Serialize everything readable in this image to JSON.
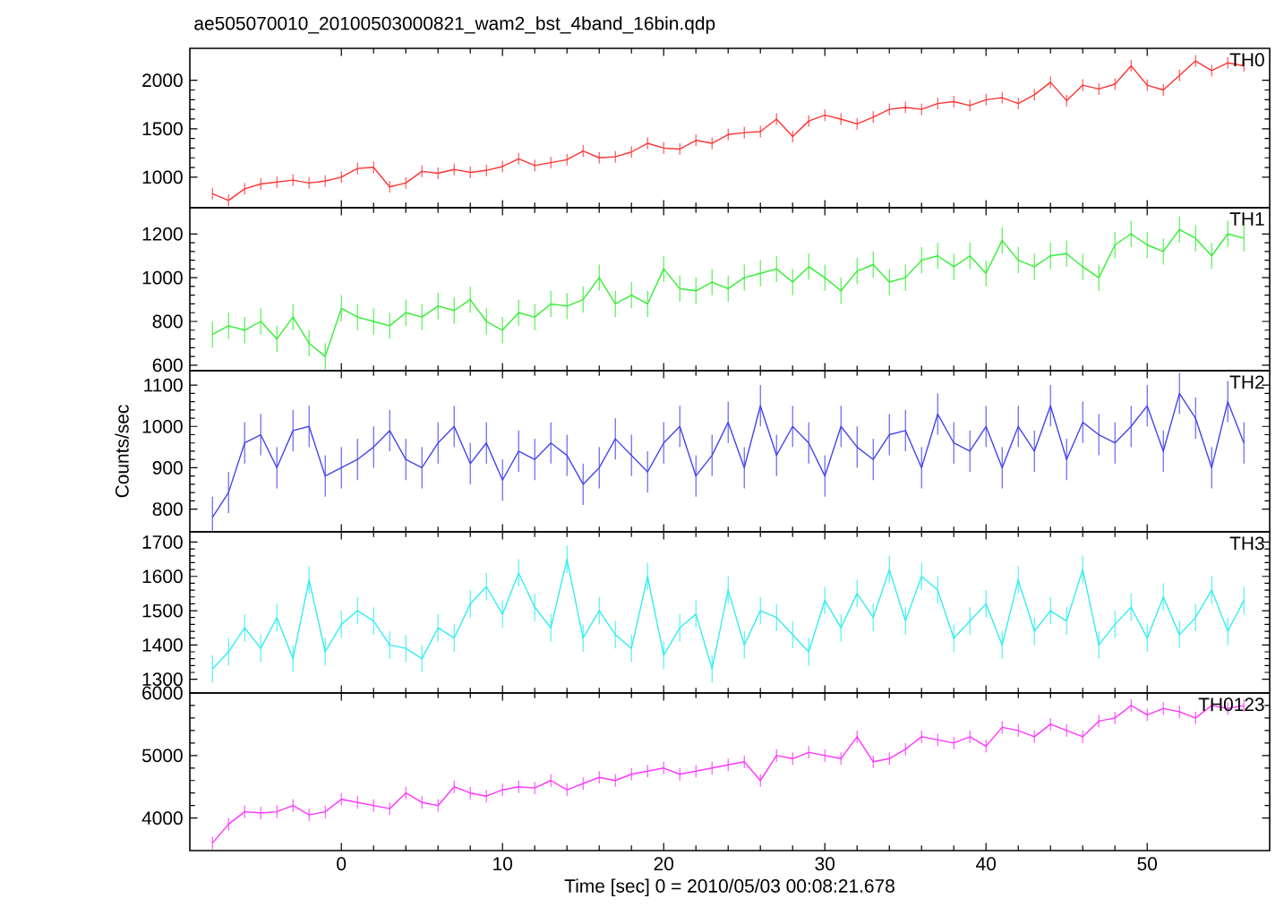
{
  "chart_data": [
    {
      "type": "line",
      "title": "ae505070010_20100503000821_wam2_bst_4band_16bin.qdp",
      "annotations": [
        "TH0"
      ],
      "xlim": [
        -9.4,
        57.6
      ],
      "xticks": [
        0,
        10,
        20,
        30,
        40,
        50
      ],
      "ylim": [
        685,
        2330
      ],
      "yticks": [
        1000,
        1500,
        2000
      ],
      "tick_labels": "y",
      "marker": "none",
      "x": [
        -8,
        -7,
        -6,
        -5,
        -4,
        -3,
        -2,
        -1,
        0,
        1,
        2,
        3,
        4,
        5,
        6,
        7,
        8,
        9,
        10,
        11,
        12,
        13,
        14,
        15,
        16,
        17,
        18,
        19,
        20,
        21,
        22,
        23,
        24,
        25,
        26,
        27,
        28,
        29,
        30,
        31,
        32,
        33,
        34,
        35,
        36,
        37,
        38,
        39,
        40,
        41,
        42,
        43,
        44,
        45,
        46,
        47,
        48,
        49,
        50,
        51,
        52,
        53,
        54,
        55,
        56
      ],
      "series": [
        {
          "color": "#ff3333",
          "values": [
            830,
            760,
            880,
            930,
            950,
            970,
            940,
            960,
            1000,
            1090,
            1100,
            900,
            940,
            1060,
            1040,
            1080,
            1050,
            1070,
            1110,
            1190,
            1120,
            1150,
            1180,
            1270,
            1200,
            1210,
            1260,
            1350,
            1300,
            1290,
            1380,
            1350,
            1440,
            1460,
            1470,
            1600,
            1420,
            1580,
            1640,
            1600,
            1550,
            1620,
            1700,
            1720,
            1700,
            1760,
            1780,
            1740,
            1800,
            1820,
            1760,
            1850,
            1980,
            1790,
            1950,
            1910,
            1960,
            2150,
            1950,
            1900,
            2050,
            2200,
            2100,
            2180,
            2150
          ],
          "errors": [
            60,
            60,
            60,
            60,
            60,
            60,
            60,
            60,
            60,
            60,
            60,
            60,
            60,
            60,
            60,
            60,
            60,
            60,
            60,
            60,
            60,
            60,
            60,
            60,
            60,
            60,
            60,
            60,
            60,
            60,
            60,
            60,
            60,
            60,
            60,
            60,
            60,
            60,
            60,
            60,
            60,
            60,
            60,
            60,
            60,
            60,
            60,
            60,
            60,
            60,
            60,
            60,
            60,
            60,
            60,
            60,
            60,
            60,
            60,
            60,
            60,
            60,
            60,
            60,
            60
          ]
        }
      ]
    },
    {
      "type": "line",
      "annotations": [
        "TH1"
      ],
      "xlim": [
        -9.4,
        57.6
      ],
      "xticks": [
        0,
        10,
        20,
        30,
        40,
        50
      ],
      "ylim": [
        575,
        1320
      ],
      "yticks": [
        600,
        800,
        1000,
        1200
      ],
      "tick_labels": "y",
      "marker": "none",
      "x": [
        -8,
        -7,
        -6,
        -5,
        -4,
        -3,
        -2,
        -1,
        0,
        1,
        2,
        3,
        4,
        5,
        6,
        7,
        8,
        9,
        10,
        11,
        12,
        13,
        14,
        15,
        16,
        17,
        18,
        19,
        20,
        21,
        22,
        23,
        24,
        25,
        26,
        27,
        28,
        29,
        30,
        31,
        32,
        33,
        34,
        35,
        36,
        37,
        38,
        39,
        40,
        41,
        42,
        43,
        44,
        45,
        46,
        47,
        48,
        49,
        50,
        51,
        52,
        53,
        54,
        55,
        56
      ],
      "series": [
        {
          "color": "#33ee33",
          "values": [
            740,
            780,
            760,
            800,
            720,
            820,
            700,
            640,
            860,
            820,
            800,
            780,
            840,
            820,
            870,
            850,
            900,
            800,
            760,
            840,
            820,
            880,
            870,
            900,
            1000,
            880,
            920,
            880,
            1040,
            950,
            940,
            980,
            950,
            1000,
            1020,
            1040,
            980,
            1050,
            1000,
            940,
            1030,
            1060,
            980,
            1000,
            1080,
            1100,
            1050,
            1100,
            1020,
            1170,
            1080,
            1050,
            1100,
            1110,
            1050,
            1000,
            1150,
            1200,
            1150,
            1120,
            1220,
            1180,
            1100,
            1200,
            1180
          ],
          "errors": [
            60,
            60,
            60,
            60,
            60,
            60,
            60,
            60,
            60,
            60,
            60,
            60,
            60,
            60,
            60,
            60,
            60,
            60,
            60,
            60,
            60,
            60,
            60,
            60,
            60,
            60,
            60,
            60,
            60,
            60,
            60,
            60,
            60,
            60,
            60,
            60,
            60,
            60,
            60,
            60,
            60,
            60,
            60,
            60,
            60,
            60,
            60,
            60,
            60,
            60,
            60,
            60,
            60,
            60,
            60,
            60,
            60,
            60,
            60,
            60,
            60,
            60,
            60,
            60,
            60
          ]
        }
      ]
    },
    {
      "type": "line",
      "ylabel": "Counts/sec",
      "annotations": [
        "TH2"
      ],
      "xlim": [
        -9.4,
        57.6
      ],
      "xticks": [
        0,
        10,
        20,
        30,
        40,
        50
      ],
      "ylim": [
        745,
        1135
      ],
      "yticks": [
        800,
        900,
        1000,
        1100
      ],
      "tick_labels": "y",
      "marker": "none",
      "x": [
        -8,
        -7,
        -6,
        -5,
        -4,
        -3,
        -2,
        -1,
        0,
        1,
        2,
        3,
        4,
        5,
        6,
        7,
        8,
        9,
        10,
        11,
        12,
        13,
        14,
        15,
        16,
        17,
        18,
        19,
        20,
        21,
        22,
        23,
        24,
        25,
        26,
        27,
        28,
        29,
        30,
        31,
        32,
        33,
        34,
        35,
        36,
        37,
        38,
        39,
        40,
        41,
        42,
        43,
        44,
        45,
        46,
        47,
        48,
        49,
        50,
        51,
        52,
        53,
        54,
        55,
        56
      ],
      "series": [
        {
          "color": "#4444ee",
          "values": [
            780,
            840,
            960,
            980,
            900,
            990,
            1000,
            880,
            900,
            920,
            950,
            990,
            920,
            900,
            960,
            1000,
            910,
            960,
            870,
            940,
            920,
            960,
            930,
            860,
            900,
            970,
            930,
            890,
            960,
            1000,
            880,
            930,
            1010,
            900,
            1050,
            930,
            1000,
            960,
            880,
            1000,
            950,
            920,
            980,
            990,
            900,
            1030,
            960,
            940,
            1000,
            900,
            1000,
            940,
            1050,
            920,
            1010,
            980,
            960,
            1000,
            1050,
            940,
            1080,
            1020,
            900,
            1060,
            960
          ],
          "errors": [
            50,
            50,
            50,
            50,
            50,
            50,
            50,
            50,
            50,
            50,
            50,
            50,
            50,
            50,
            50,
            50,
            50,
            50,
            50,
            50,
            50,
            50,
            50,
            50,
            50,
            50,
            50,
            50,
            50,
            50,
            50,
            50,
            50,
            50,
            50,
            50,
            50,
            50,
            50,
            50,
            50,
            50,
            50,
            50,
            50,
            50,
            50,
            50,
            50,
            50,
            50,
            50,
            50,
            50,
            50,
            50,
            50,
            50,
            50,
            50,
            50,
            50,
            50,
            50,
            50
          ]
        }
      ]
    },
    {
      "type": "line",
      "annotations": [
        "TH3"
      ],
      "xlim": [
        -9.4,
        57.6
      ],
      "xticks": [
        0,
        10,
        20,
        30,
        40,
        50
      ],
      "ylim": [
        1260,
        1730
      ],
      "yticks": [
        1300,
        1400,
        1500,
        1600,
        1700
      ],
      "tick_labels": "y",
      "marker": "none",
      "x": [
        -8,
        -7,
        -6,
        -5,
        -4,
        -3,
        -2,
        -1,
        0,
        1,
        2,
        3,
        4,
        5,
        6,
        7,
        8,
        9,
        10,
        11,
        12,
        13,
        14,
        15,
        16,
        17,
        18,
        19,
        20,
        21,
        22,
        23,
        24,
        25,
        26,
        27,
        28,
        29,
        30,
        31,
        32,
        33,
        34,
        35,
        36,
        37,
        38,
        39,
        40,
        41,
        42,
        43,
        44,
        45,
        46,
        47,
        48,
        49,
        50,
        51,
        52,
        53,
        54,
        55,
        56
      ],
      "series": [
        {
          "color": "#33eeee",
          "values": [
            1330,
            1380,
            1450,
            1390,
            1480,
            1360,
            1590,
            1380,
            1460,
            1500,
            1470,
            1400,
            1390,
            1360,
            1450,
            1420,
            1520,
            1570,
            1490,
            1610,
            1510,
            1450,
            1650,
            1420,
            1500,
            1430,
            1390,
            1600,
            1370,
            1450,
            1490,
            1330,
            1560,
            1400,
            1500,
            1480,
            1430,
            1380,
            1530,
            1450,
            1550,
            1480,
            1620,
            1470,
            1600,
            1560,
            1420,
            1470,
            1520,
            1400,
            1590,
            1440,
            1500,
            1470,
            1620,
            1400,
            1460,
            1510,
            1420,
            1540,
            1430,
            1480,
            1560,
            1440,
            1530
          ],
          "errors": [
            40,
            40,
            40,
            40,
            40,
            40,
            40,
            40,
            40,
            40,
            40,
            40,
            40,
            40,
            40,
            40,
            40,
            40,
            40,
            40,
            40,
            40,
            40,
            40,
            40,
            40,
            40,
            40,
            40,
            40,
            40,
            40,
            40,
            40,
            40,
            40,
            40,
            40,
            40,
            40,
            40,
            40,
            40,
            40,
            40,
            40,
            40,
            40,
            40,
            40,
            40,
            40,
            40,
            40,
            40,
            40,
            40,
            40,
            40,
            40,
            40,
            40,
            40,
            40,
            40
          ]
        }
      ]
    },
    {
      "type": "line",
      "xlabel": "Time [sec] 0 = 2010/05/03 00:08:21.678",
      "annotations": [
        "TH0123"
      ],
      "xlim": [
        -9.4,
        57.6
      ],
      "xticks": [
        0,
        10,
        20,
        30,
        40,
        50
      ],
      "ylim": [
        3480,
        6000
      ],
      "yticks": [
        4000,
        5000,
        6000
      ],
      "marker": "none",
      "x": [
        -8,
        -7,
        -6,
        -5,
        -4,
        -3,
        -2,
        -1,
        0,
        1,
        2,
        3,
        4,
        5,
        6,
        7,
        8,
        9,
        10,
        11,
        12,
        13,
        14,
        15,
        16,
        17,
        18,
        19,
        20,
        21,
        22,
        23,
        24,
        25,
        26,
        27,
        28,
        29,
        30,
        31,
        32,
        33,
        34,
        35,
        36,
        37,
        38,
        39,
        40,
        41,
        42,
        43,
        44,
        45,
        46,
        47,
        48,
        49,
        50,
        51,
        52,
        53,
        54,
        55,
        56
      ],
      "series": [
        {
          "color": "#ff33ff",
          "values": [
            3600,
            3900,
            4100,
            4080,
            4100,
            4200,
            4050,
            4100,
            4300,
            4250,
            4200,
            4150,
            4400,
            4250,
            4200,
            4500,
            4400,
            4350,
            4450,
            4500,
            4480,
            4600,
            4450,
            4550,
            4650,
            4600,
            4700,
            4750,
            4800,
            4700,
            4750,
            4800,
            4850,
            4900,
            4600,
            5000,
            4950,
            5050,
            5000,
            4950,
            5300,
            4900,
            4950,
            5100,
            5300,
            5250,
            5200,
            5300,
            5150,
            5450,
            5400,
            5300,
            5500,
            5400,
            5300,
            5550,
            5600,
            5800,
            5650,
            5750,
            5700,
            5600,
            5800,
            5750,
            5800
          ],
          "errors": [
            100,
            100,
            100,
            100,
            100,
            100,
            100,
            100,
            100,
            100,
            100,
            100,
            100,
            100,
            100,
            100,
            100,
            100,
            100,
            100,
            100,
            100,
            100,
            100,
            100,
            100,
            100,
            100,
            100,
            100,
            100,
            100,
            100,
            100,
            100,
            100,
            100,
            100,
            100,
            100,
            100,
            100,
            100,
            100,
            100,
            100,
            100,
            100,
            100,
            100,
            100,
            100,
            100,
            100,
            100,
            100,
            100,
            100,
            100,
            100,
            100,
            100,
            100,
            100,
            100
          ]
        }
      ]
    }
  ]
}
